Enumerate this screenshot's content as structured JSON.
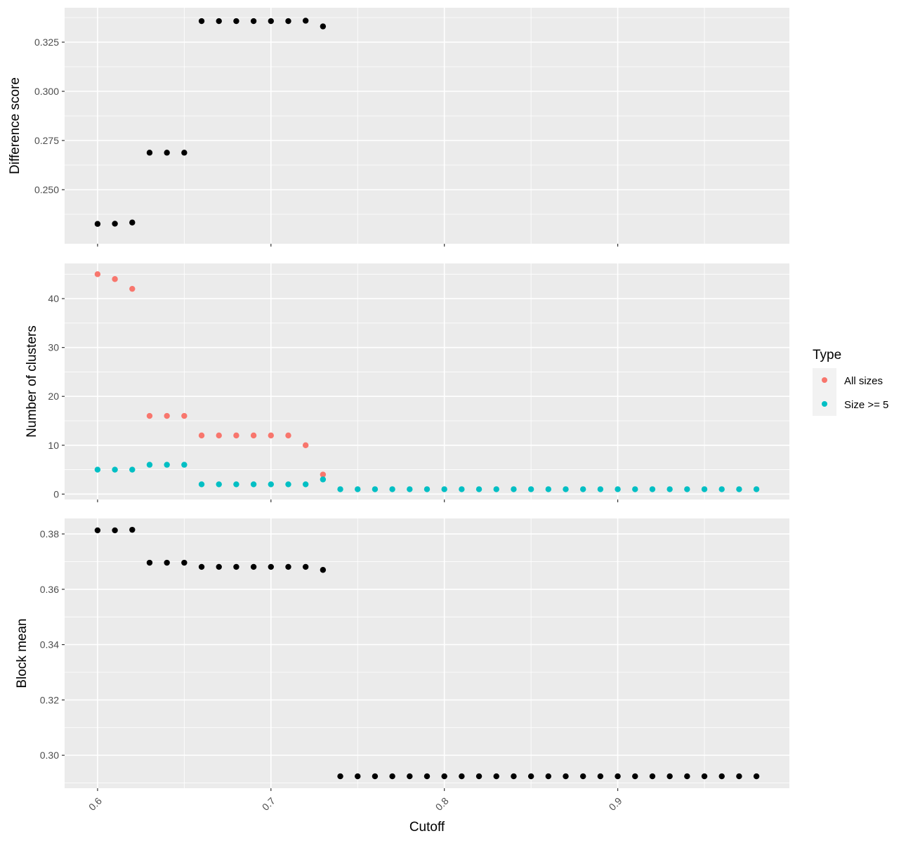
{
  "chart_data": {
    "type": "scatter",
    "xlabel": "Cutoff",
    "xlim": [
      0.581,
      0.999
    ],
    "x_ticks": [
      {
        "value": 0.6,
        "label": "0.6"
      },
      {
        "value": 0.7,
        "label": "0.7"
      },
      {
        "value": 0.8,
        "label": "0.8"
      },
      {
        "value": 0.9,
        "label": "0.9"
      }
    ],
    "background": "#ebebeb",
    "grid": true,
    "legend": {
      "title": "Type",
      "placement": "right",
      "entries": [
        {
          "label": "All sizes",
          "color": "#f8766d"
        },
        {
          "label": "Size >= 5",
          "color": "#00bfc4"
        }
      ]
    },
    "panels": [
      {
        "ylabel": "Difference score",
        "ylim": [
          0.2225,
          0.3425
        ],
        "y_ticks": [
          {
            "value": 0.25,
            "label": "0.250"
          },
          {
            "value": 0.275,
            "label": "0.275"
          },
          {
            "value": 0.3,
            "label": "0.300"
          },
          {
            "value": 0.325,
            "label": "0.325"
          }
        ],
        "series": [
          {
            "color": "#000000",
            "x": [
              0.6,
              0.61,
              0.62,
              0.63,
              0.64,
              0.65,
              0.66,
              0.67,
              0.68,
              0.69,
              0.7,
              0.71,
              0.72,
              0.73
            ],
            "y": [
              0.2326,
              0.2327,
              0.2333,
              0.2688,
              0.2688,
              0.2688,
              0.3357,
              0.3357,
              0.3357,
              0.3357,
              0.3357,
              0.3357,
              0.3359,
              0.333
            ]
          }
        ]
      },
      {
        "ylabel": "Number of clusters",
        "ylim": [
          -1.1,
          47.2
        ],
        "y_ticks": [
          {
            "value": 0,
            "label": "0"
          },
          {
            "value": 10,
            "label": "10"
          },
          {
            "value": 20,
            "label": "20"
          },
          {
            "value": 30,
            "label": "30"
          },
          {
            "value": 40,
            "label": "40"
          }
        ],
        "series": [
          {
            "name": "All sizes",
            "color": "#f8766d",
            "x": [
              0.6,
              0.61,
              0.62,
              0.63,
              0.64,
              0.65,
              0.66,
              0.67,
              0.68,
              0.69,
              0.7,
              0.71,
              0.72,
              0.73
            ],
            "y": [
              45,
              44,
              42,
              16,
              16,
              16,
              12,
              12,
              12,
              12,
              12,
              12,
              10,
              4
            ]
          },
          {
            "name": "Size >= 5",
            "color": "#00bfc4",
            "x": [
              0.6,
              0.61,
              0.62,
              0.63,
              0.64,
              0.65,
              0.66,
              0.67,
              0.68,
              0.69,
              0.7,
              0.71,
              0.72,
              0.73,
              0.74,
              0.75,
              0.76,
              0.77,
              0.78,
              0.79,
              0.8,
              0.81,
              0.82,
              0.83,
              0.84,
              0.85,
              0.86,
              0.87,
              0.88,
              0.89,
              0.9,
              0.91,
              0.92,
              0.93,
              0.94,
              0.95,
              0.96,
              0.97,
              0.98
            ],
            "y": [
              5,
              5,
              5,
              6,
              6,
              6,
              2,
              2,
              2,
              2,
              2,
              2,
              2,
              3,
              1,
              1,
              1,
              1,
              1,
              1,
              1,
              1,
              1,
              1,
              1,
              1,
              1,
              1,
              1,
              1,
              1,
              1,
              1,
              1,
              1,
              1,
              1,
              1,
              1
            ]
          }
        ]
      },
      {
        "ylabel": "Block mean",
        "ylim": [
          0.2881,
          0.3856
        ],
        "y_ticks": [
          {
            "value": 0.3,
            "label": "0.30"
          },
          {
            "value": 0.32,
            "label": "0.32"
          },
          {
            "value": 0.34,
            "label": "0.34"
          },
          {
            "value": 0.36,
            "label": "0.36"
          },
          {
            "value": 0.38,
            "label": "0.38"
          }
        ],
        "series": [
          {
            "color": "#000000",
            "x": [
              0.6,
              0.61,
              0.62,
              0.63,
              0.64,
              0.65,
              0.66,
              0.67,
              0.68,
              0.69,
              0.7,
              0.71,
              0.72,
              0.73,
              0.74,
              0.75,
              0.76,
              0.77,
              0.78,
              0.79,
              0.8,
              0.81,
              0.82,
              0.83,
              0.84,
              0.85,
              0.86,
              0.87,
              0.88,
              0.89,
              0.9,
              0.91,
              0.92,
              0.93,
              0.94,
              0.95,
              0.96,
              0.97,
              0.98
            ],
            "y": [
              0.3813,
              0.3813,
              0.3815,
              0.3696,
              0.3696,
              0.3696,
              0.3681,
              0.3681,
              0.3681,
              0.3681,
              0.3681,
              0.3681,
              0.3681,
              0.367,
              0.2924,
              0.2924,
              0.2924,
              0.2924,
              0.2924,
              0.2924,
              0.2924,
              0.2924,
              0.2924,
              0.2924,
              0.2924,
              0.2924,
              0.2924,
              0.2924,
              0.2924,
              0.2924,
              0.2924,
              0.2924,
              0.2924,
              0.2924,
              0.2924,
              0.2924,
              0.2924,
              0.2924,
              0.2924
            ]
          }
        ]
      }
    ]
  }
}
